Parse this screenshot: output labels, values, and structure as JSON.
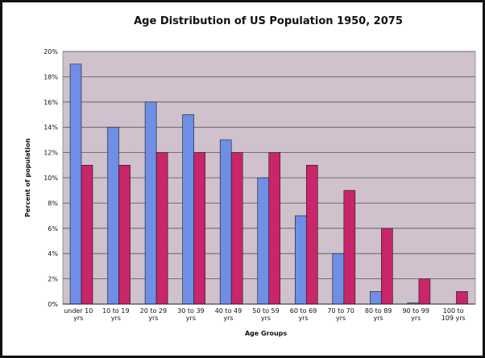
{
  "chart_data": {
    "type": "bar",
    "title": "Age Distribution of US Population 1950, 2075",
    "xlabel": "Age Groups",
    "ylabel": "Percent of population",
    "ylim": [
      0,
      20
    ],
    "y_ticks": [
      "0%",
      "2%",
      "4%",
      "6%",
      "8%",
      "10%",
      "12%",
      "14%",
      "16%",
      "18%",
      "20%"
    ],
    "y_tick_values": [
      0,
      2,
      4,
      6,
      8,
      10,
      12,
      14,
      16,
      18,
      20
    ],
    "grid": true,
    "legend": "none",
    "categories": [
      [
        "under 10",
        "yrs"
      ],
      [
        "10 to 19",
        "yrs"
      ],
      [
        "20 to 29",
        "yrs"
      ],
      [
        "30 to 39",
        "yrs"
      ],
      [
        "40 to 49",
        "yrs"
      ],
      [
        "50 to 59",
        "yrs"
      ],
      [
        "60 to 69",
        "yrs"
      ],
      [
        "70 to 70",
        "yrs"
      ],
      [
        "80 to 89",
        "yrs"
      ],
      [
        "90 to 99",
        "yrs"
      ],
      [
        "100 to",
        "109 yrs"
      ]
    ],
    "series": [
      {
        "values": [
          19,
          14,
          16,
          15,
          13,
          10,
          7,
          4,
          1,
          0.1,
          0
        ],
        "color": "#6f8ee6"
      },
      {
        "values": [
          11,
          11,
          12,
          12,
          12,
          12,
          11,
          9,
          6,
          2,
          1
        ],
        "color": "#c8256a"
      }
    ],
    "plot_background": "#cfc2cc"
  }
}
